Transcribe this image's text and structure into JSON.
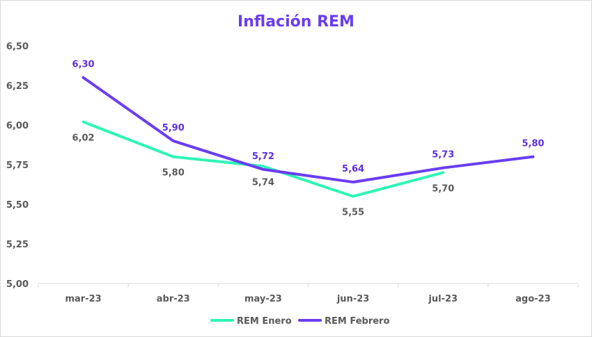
{
  "chart_data": {
    "type": "line",
    "title": "Inflación REM",
    "categories": [
      "mar-23",
      "abr-23",
      "may-23",
      "jun-23",
      "jul-23",
      "ago-23"
    ],
    "ylim": [
      5.0,
      6.5
    ],
    "yticks": [
      "5,00",
      "5,25",
      "5,50",
      "5,75",
      "6,00",
      "6,25",
      "6,50"
    ],
    "grid": false,
    "legend_position": "bottom",
    "series": [
      {
        "name": "REM Enero",
        "color": "#2ef5b6",
        "label_color": "#595959",
        "values": [
          6.02,
          5.8,
          5.74,
          5.55,
          5.7,
          null
        ],
        "labels": [
          "6,02",
          "5,80",
          "5,74",
          "5,55",
          "5,70",
          null
        ]
      },
      {
        "name": "REM Febrero",
        "color": "#6a3df0",
        "label_color": "#5b2ee0",
        "values": [
          6.3,
          5.9,
          5.72,
          5.64,
          5.73,
          5.8
        ],
        "labels": [
          "6,30",
          "5,90",
          "5,72",
          "5,64",
          "5,73",
          "5,80"
        ]
      }
    ]
  },
  "colors": {
    "title": "#6a3df0",
    "axis": "#d9d9d9"
  }
}
